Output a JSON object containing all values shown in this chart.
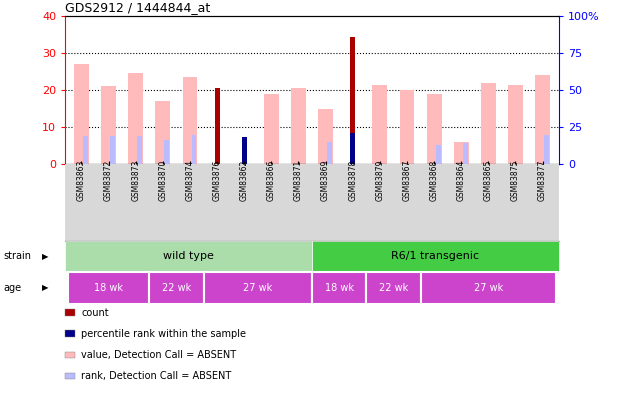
{
  "title": "GDS2912 / 1444844_at",
  "samples": [
    "GSM83863",
    "GSM83872",
    "GSM83873",
    "GSM83870",
    "GSM83874",
    "GSM83876",
    "GSM83862",
    "GSM83866",
    "GSM83871",
    "GSM83869",
    "GSM83878",
    "GSM83879",
    "GSM83867",
    "GSM83868",
    "GSM83864",
    "GSM83865",
    "GSM83875",
    "GSM83877"
  ],
  "count_values": [
    0,
    0,
    0,
    0,
    0,
    20.5,
    0,
    0,
    0,
    0,
    34.5,
    0,
    0,
    0,
    0,
    0,
    0,
    0
  ],
  "percentile_values": [
    0,
    0,
    0,
    0,
    0,
    0,
    18,
    0,
    0,
    0,
    21,
    0,
    0,
    0,
    0,
    0,
    0,
    0
  ],
  "value_absent": [
    27,
    21,
    24.5,
    17,
    23.5,
    0,
    0,
    19,
    20.5,
    15,
    0,
    21.5,
    20,
    19,
    6,
    22,
    21.5,
    24
  ],
  "rank_absent": [
    19,
    19,
    19,
    16,
    19.5,
    0,
    0,
    0,
    0,
    15,
    0,
    0,
    0,
    0,
    8.5,
    0,
    0,
    19.5
  ],
  "rank_absent_alt": [
    0,
    0,
    0,
    0,
    0,
    0,
    0,
    0,
    0,
    0,
    0,
    0,
    0,
    13,
    14,
    0,
    0,
    0
  ],
  "ylim_left": [
    0,
    40
  ],
  "ylim_right": [
    0,
    100
  ],
  "yticks_left": [
    0,
    10,
    20,
    30,
    40
  ],
  "yticks_right": [
    0,
    25,
    50,
    75,
    100
  ],
  "ytick_labels_right": [
    "0",
    "25",
    "50",
    "75",
    "100%"
  ],
  "bg_color": "#d8d8d8",
  "plot_bg": "#ffffff",
  "strain_wt_color": "#aaddaa",
  "strain_tg_color": "#44cc44",
  "age_color": "#cc44cc",
  "count_color": "#aa0000",
  "percentile_color": "#000088",
  "value_absent_color": "#ffbbbb",
  "rank_absent_color": "#bbbbff",
  "age_group_positions": [
    [
      0,
      3,
      "18 wk"
    ],
    [
      3,
      5,
      "22 wk"
    ],
    [
      5,
      9,
      "27 wk"
    ],
    [
      9,
      11,
      "18 wk"
    ],
    [
      11,
      13,
      "22 wk"
    ],
    [
      13,
      18,
      "27 wk"
    ]
  ],
  "legend": [
    {
      "label": "count",
      "color": "#aa0000"
    },
    {
      "label": "percentile rank within the sample",
      "color": "#000088"
    },
    {
      "label": "value, Detection Call = ABSENT",
      "color": "#ffbbbb"
    },
    {
      "label": "rank, Detection Call = ABSENT",
      "color": "#bbbbff"
    }
  ]
}
